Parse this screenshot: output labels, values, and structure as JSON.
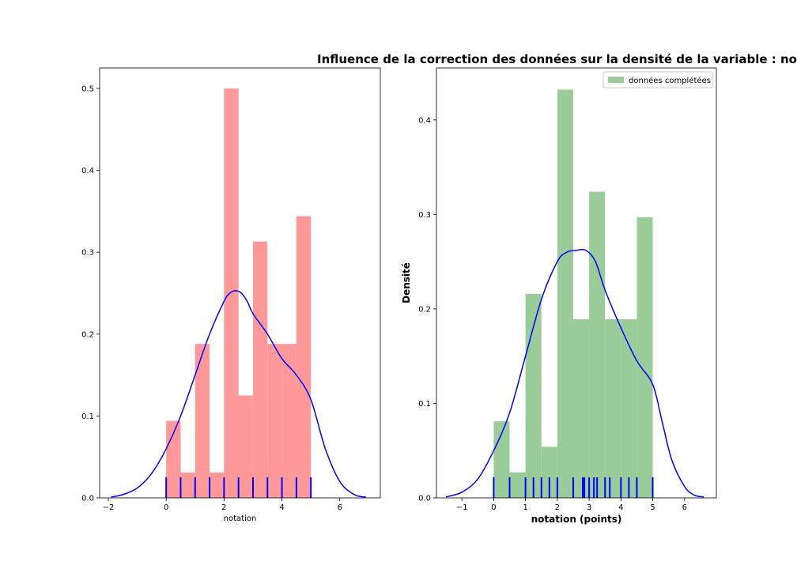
{
  "title": "Influence de la correction des données sur la densité de la variable : no",
  "chart_data": [
    {
      "type": "bar",
      "subtype": "histogram+kde+rug",
      "xlabel": "notation",
      "ylabel": "",
      "xlim": [
        -2.3,
        7.4
      ],
      "ylim": [
        0,
        0.525
      ],
      "xticks": [
        -2,
        0,
        2,
        4,
        6
      ],
      "yticks": [
        0.0,
        0.1,
        0.2,
        0.3,
        0.4,
        0.5
      ],
      "bar_color": "#ff9999",
      "kde_color": "#0000ff",
      "rug_color": "#0000ff",
      "bins": [
        {
          "x0": 0.0,
          "x1": 0.5,
          "value": 0.094
        },
        {
          "x0": 0.5,
          "x1": 1.0,
          "value": 0.031
        },
        {
          "x0": 1.0,
          "x1": 1.5,
          "value": 0.188
        },
        {
          "x0": 1.5,
          "x1": 2.0,
          "value": 0.031
        },
        {
          "x0": 2.0,
          "x1": 2.5,
          "value": 0.5
        },
        {
          "x0": 2.5,
          "x1": 3.0,
          "value": 0.125
        },
        {
          "x0": 3.0,
          "x1": 3.5,
          "value": 0.313
        },
        {
          "x0": 3.5,
          "x1": 4.0,
          "value": 0.188
        },
        {
          "x0": 4.0,
          "x1": 4.5,
          "value": 0.188
        },
        {
          "x0": 4.5,
          "x1": 5.0,
          "value": 0.344
        }
      ],
      "rug": [
        0,
        0.5,
        1,
        1.5,
        2,
        2.5,
        3,
        3.5,
        4,
        4.5,
        5
      ],
      "kde": {
        "x": [
          -1.9,
          -1.5,
          -1.0,
          -0.5,
          0.0,
          0.5,
          1.0,
          1.5,
          2.0,
          2.2,
          2.4,
          2.6,
          2.8,
          3.0,
          3.5,
          4.0,
          4.5,
          5.0,
          5.5,
          6.0,
          6.5,
          6.9
        ],
        "y": [
          0.001,
          0.004,
          0.012,
          0.03,
          0.06,
          0.1,
          0.15,
          0.2,
          0.24,
          0.25,
          0.253,
          0.25,
          0.24,
          0.225,
          0.2,
          0.17,
          0.15,
          0.12,
          0.06,
          0.02,
          0.004,
          0.001
        ]
      }
    },
    {
      "type": "bar",
      "subtype": "histogram+kde+rug",
      "xlabel": "notation (points)",
      "ylabel": "Densité",
      "xlim": [
        -1.8,
        7.0
      ],
      "ylim": [
        0,
        0.455
      ],
      "xticks": [
        -1,
        0,
        1,
        2,
        3,
        4,
        5,
        6
      ],
      "yticks": [
        0.0,
        0.1,
        0.2,
        0.3,
        0.4
      ],
      "bar_color": "#99cc99",
      "kde_color": "#0000ff",
      "rug_color": "#0000ff",
      "legend": {
        "label": "données complétées",
        "position": "top-right"
      },
      "bins": [
        {
          "x0": 0.0,
          "x1": 0.5,
          "value": 0.081
        },
        {
          "x0": 0.5,
          "x1": 1.0,
          "value": 0.027
        },
        {
          "x0": 1.0,
          "x1": 1.5,
          "value": 0.216
        },
        {
          "x0": 1.5,
          "x1": 2.0,
          "value": 0.054
        },
        {
          "x0": 2.0,
          "x1": 2.5,
          "value": 0.432
        },
        {
          "x0": 2.5,
          "x1": 3.0,
          "value": 0.189
        },
        {
          "x0": 3.0,
          "x1": 3.5,
          "value": 0.324
        },
        {
          "x0": 3.5,
          "x1": 4.0,
          "value": 0.189
        },
        {
          "x0": 4.0,
          "x1": 4.5,
          "value": 0.189
        },
        {
          "x0": 4.5,
          "x1": 5.0,
          "value": 0.297
        }
      ],
      "rug": [
        0,
        0.5,
        1,
        1.25,
        1.5,
        1.75,
        2,
        2.5,
        2.8,
        2.85,
        3,
        3.15,
        3.25,
        3.5,
        3.65,
        4,
        4.25,
        4.5,
        5
      ],
      "kde": {
        "x": [
          -1.5,
          -1.0,
          -0.5,
          0.0,
          0.5,
          1.0,
          1.5,
          2.0,
          2.3,
          2.6,
          2.9,
          3.2,
          3.5,
          4.0,
          4.5,
          5.0,
          5.3,
          5.6,
          6.0,
          6.3,
          6.6
        ],
        "y": [
          0.001,
          0.006,
          0.02,
          0.05,
          0.09,
          0.15,
          0.21,
          0.25,
          0.26,
          0.262,
          0.262,
          0.25,
          0.22,
          0.18,
          0.145,
          0.12,
          0.08,
          0.04,
          0.012,
          0.003,
          0.001
        ]
      }
    }
  ]
}
